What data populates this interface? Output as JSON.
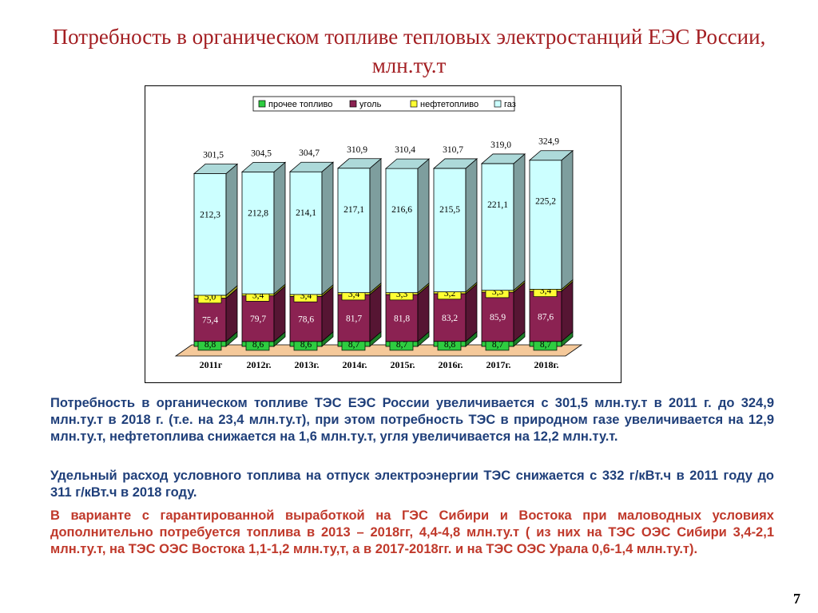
{
  "title": "Потребность в органическом топливе тепловых электростанций ЕЭС России, млн.ту.т",
  "chart_data": {
    "type": "bar",
    "stacked": true,
    "style": "3d",
    "categories": [
      "2011г",
      "2012г.",
      "2013г.",
      "2014г.",
      "2015г.",
      "2016г.",
      "2017г.",
      "2018г."
    ],
    "series": [
      {
        "name": "прочее топливо",
        "color": "#2ecc40",
        "values": [
          8.8,
          8.6,
          8.6,
          8.7,
          8.7,
          8.8,
          8.7,
          8.7
        ]
      },
      {
        "name": "уголь",
        "color": "#8b2252",
        "values": [
          75.4,
          79.7,
          78.6,
          81.7,
          81.8,
          83.2,
          85.9,
          87.6
        ]
      },
      {
        "name": "нефтетопливо",
        "color": "#ffff33",
        "values": [
          5.0,
          3.4,
          3.4,
          3.4,
          3.3,
          3.2,
          3.3,
          3.4
        ]
      },
      {
        "name": "газ",
        "color": "#ccffff",
        "values": [
          212.3,
          212.8,
          214.1,
          217.1,
          216.6,
          215.5,
          221.1,
          225.2
        ]
      }
    ],
    "totals": [
      301.5,
      304.5,
      304.7,
      310.9,
      310.4,
      310.7,
      319.0,
      324.9
    ],
    "value_labels": {
      "прочее топливо": [
        "8,8",
        "8,6",
        "8,6",
        "8,7",
        "8,7",
        "8,8",
        "8,7",
        "8,7"
      ],
      "уголь": [
        "75,4",
        "79,7",
        "78,6",
        "81,7",
        "81,8",
        "83,2",
        "85,9",
        "87,6"
      ],
      "нефтетопливо": [
        "5,0",
        "3,4",
        "3,4",
        "3,4",
        "3,3",
        "3,2",
        "3,3",
        "3,4"
      ],
      "газ": [
        "212,3",
        "212,8",
        "214,1",
        "217,1",
        "216,6",
        "215,5",
        "221,1",
        "225,2"
      ]
    },
    "total_labels": [
      "301,5",
      "304,5",
      "304,7",
      "310,9",
      "310,4",
      "310,7",
      "319,0",
      "324,9"
    ],
    "legend_position": "top",
    "grid": false,
    "floor_color": "#f5c99a"
  },
  "paragraphs": [
    "Потребность в органическом топливе ТЭС ЕЭС России увеличивается с 301,5 млн.ту.т в 2011 г. до 324,9 млн.ту.т в 2018 г. (т.е. на 23,4 млн.ту.т), при этом потребность ТЭС в природном газе увеличивается на 12,9 млн.ту.т, нефтетоплива снижается на 1,6 млн.ту.т, угля увеличивается на 12,2 млн.ту.т.",
    "Удельный расход условного топлива на отпуск электроэнергии ТЭС снижается с 332 г/кВт.ч в 2011 году до 311 г/кВт.ч в 2018 году.",
    "В варианте с гарантированной выработкой на ГЭС Сибири и Востока при маловодных условиях дополнительно потребуется топлива в 2013 – 2018гг, 4,4-4,8 млн.ту.т ( из них на ТЭС ОЭС Сибири 3,4-2,1 млн.ту.т, на ТЭС ОЭС Востока 1,1-1,2 млн.ту,т, а в 2017-2018гг. и на ТЭС ОЭС Урала 0,6-1,4 млн.ту.т)."
  ],
  "page_number": "7"
}
